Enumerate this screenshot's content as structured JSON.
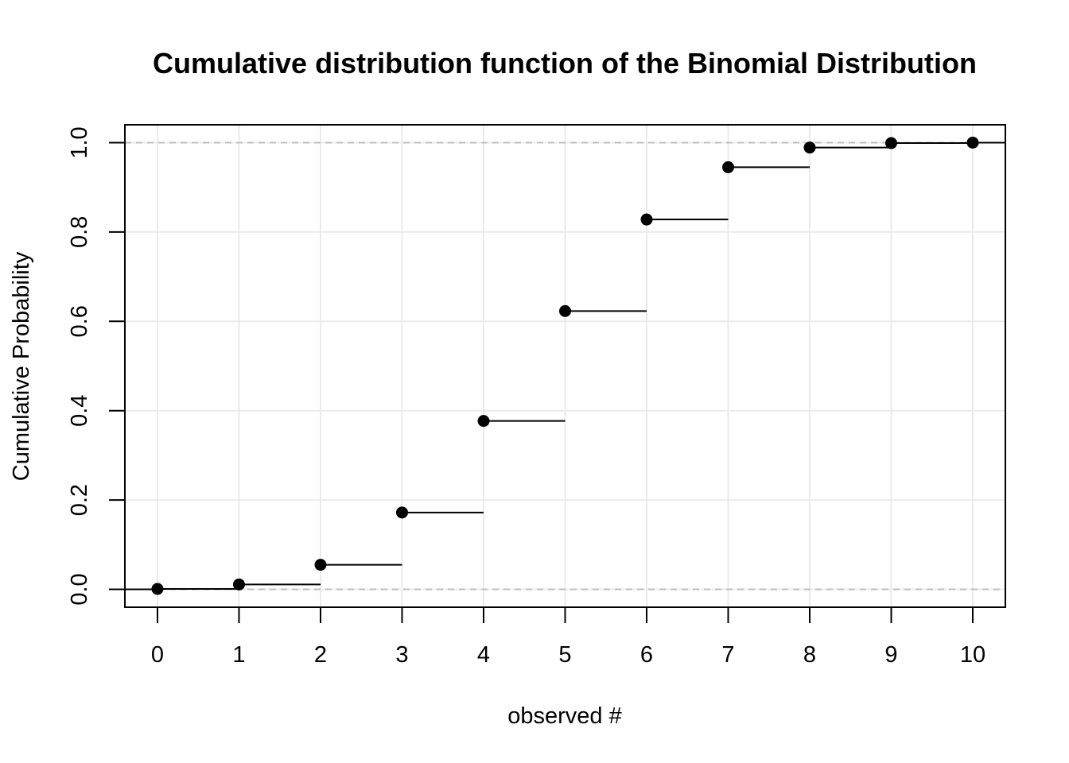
{
  "chart_data": {
    "type": "scatter",
    "subtype": "step-function",
    "title": "Cumulative distribution function of the Binomial Distribution",
    "xlabel": "observed #",
    "ylabel": "Cumulative Probability",
    "xlim": [
      -0.4,
      10.4
    ],
    "ylim": [
      -0.04,
      1.04
    ],
    "x_ticks": [
      "0",
      "1",
      "2",
      "3",
      "4",
      "5",
      "6",
      "7",
      "8",
      "9",
      "10"
    ],
    "y_ticks": [
      "0.0",
      "0.2",
      "0.4",
      "0.6",
      "0.8",
      "1.0"
    ],
    "grid": true,
    "reference_lines": [
      0,
      1
    ],
    "points": {
      "x": [
        0,
        1,
        2,
        3,
        4,
        5,
        6,
        7,
        8,
        9,
        10
      ],
      "y": [
        0.001,
        0.011,
        0.055,
        0.172,
        0.377,
        0.623,
        0.828,
        0.945,
        0.989,
        0.999,
        1.0
      ]
    },
    "colors": {
      "points": "#000000",
      "grid": "#ebebeb",
      "reference": "#bebebe"
    }
  }
}
